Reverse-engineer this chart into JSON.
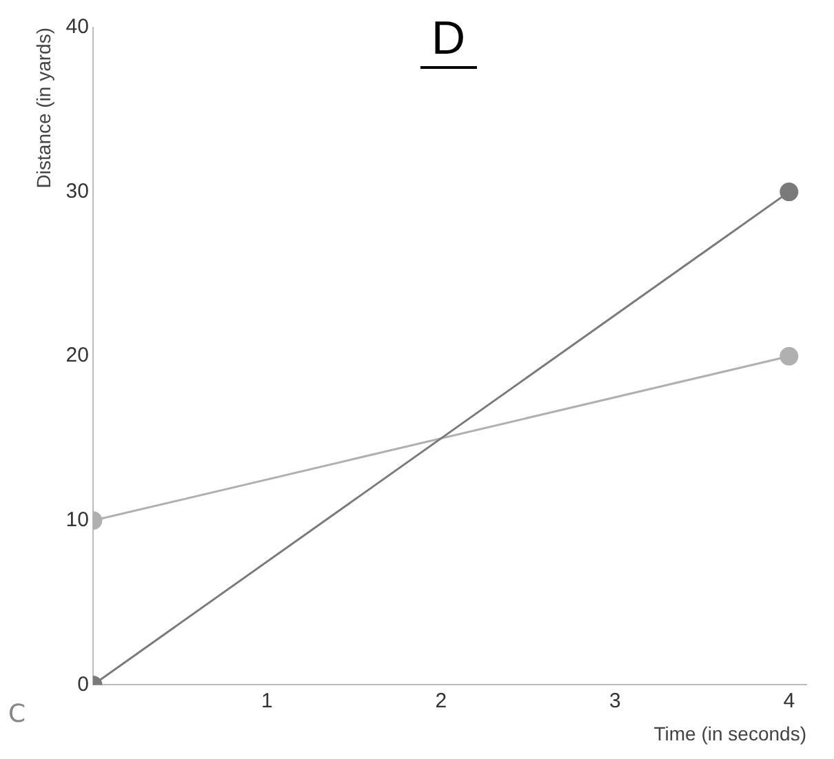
{
  "chart_data": {
    "type": "line",
    "title": "D",
    "xlabel": "Time (in seconds)",
    "ylabel": "Distance (in yards)",
    "x": [
      0,
      4
    ],
    "series": [
      {
        "color": "#7a7a7a",
        "values": [
          0,
          30
        ]
      },
      {
        "color": "#b0b0b0",
        "values": [
          10,
          20
        ]
      }
    ],
    "xlim": [
      0,
      4.1
    ],
    "xticks": [
      1,
      2,
      3,
      4
    ],
    "ylim": [
      0,
      40
    ],
    "yticks": [
      0,
      10,
      20,
      30,
      40
    ],
    "grid": false,
    "legend": false,
    "marker": "circle",
    "line_style": "solid",
    "annotations": [
      "C"
    ]
  }
}
